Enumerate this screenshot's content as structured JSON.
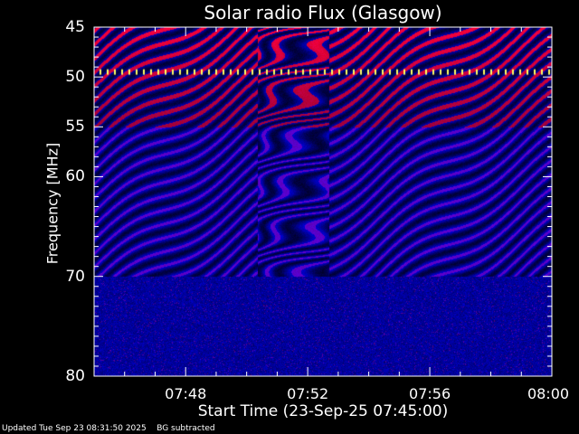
{
  "chart_data": {
    "type": "heatmap",
    "title": "Solar radio Flux (Glasgow)",
    "xlabel": "Start Time (23-Sep-25 07:45:00)",
    "ylabel": "Frequency [MHz]",
    "x_range": [
      "07:45",
      "08:00"
    ],
    "y_range": [
      45,
      80
    ],
    "y_inverted": true,
    "x_ticks": [
      "07:48",
      "07:52",
      "07:56",
      "08:00"
    ],
    "y_ticks": [
      45,
      50,
      55,
      60,
      70,
      80
    ],
    "colormap": [
      "#000040",
      "#0000ff",
      "#800000",
      "#ff0000",
      "#ffff00",
      "#ffffff"
    ],
    "features": {
      "interference_line_mhz": 49.5,
      "strong_emission_band_mhz": [
        45,
        55
      ]
    }
  },
  "footer": {
    "updated": "Updated Tue Sep 23 08:31:50 2025",
    "note": "BG subtracted"
  }
}
